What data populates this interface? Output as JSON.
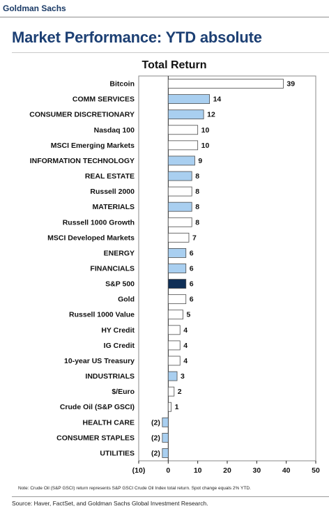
{
  "header": {
    "brand": "Goldman Sachs",
    "page_title": "Market Performance: YTD absolute"
  },
  "chart_data": {
    "type": "bar",
    "orientation": "horizontal",
    "title": "Total Return",
    "xlabel": "",
    "ylabel": "",
    "xlim": [
      -10,
      50
    ],
    "xticks": [
      -10,
      0,
      10,
      20,
      30,
      40,
      50
    ],
    "xtick_labels": [
      "(10)",
      "0",
      "10",
      "20",
      "30",
      "40",
      "50"
    ],
    "grid": false,
    "categories": [
      "Bitcoin",
      "COMM SERVICES",
      "CONSUMER DISCRETIONARY",
      "Nasdaq 100",
      "MSCI Emerging Markets",
      "INFORMATION TECHNOLOGY",
      "REAL ESTATE",
      "Russell 2000",
      "MATERIALS",
      "Russell 1000 Growth",
      "MSCI Developed Markets",
      "ENERGY",
      "FINANCIALS",
      "S&P 500",
      "Gold",
      "Russell 1000 Value",
      "HY Credit",
      "IG Credit",
      "10-year US Treasury",
      "INDUSTRIALS",
      "$/Euro",
      "Crude Oil (S&P GSCI)",
      "HEALTH CARE",
      "CONSUMER STAPLES",
      "UTILITIES"
    ],
    "values": [
      39,
      14,
      12,
      10,
      10,
      9,
      8,
      8,
      8,
      8,
      7,
      6,
      6,
      6,
      6,
      5,
      4,
      4,
      4,
      3,
      2,
      1,
      -2,
      -2,
      -2
    ],
    "value_labels": [
      "39",
      "14",
      "12",
      "10",
      "10",
      "9",
      "8",
      "8",
      "8",
      "8",
      "7",
      "6",
      "6",
      "6",
      "6",
      "5",
      "4",
      "4",
      "4",
      "3",
      "2",
      "1",
      "(2)",
      "(2)",
      "(2)"
    ],
    "bar_fill": [
      "white",
      "sector",
      "sector",
      "white",
      "white",
      "sector",
      "sector",
      "white",
      "sector",
      "white",
      "white",
      "sector",
      "sector",
      "highlight",
      "white",
      "white",
      "white",
      "white",
      "white",
      "sector",
      "white",
      "white",
      "sector",
      "sector",
      "sector"
    ],
    "colors": {
      "white": "#ffffff",
      "sector": "#a9cff0",
      "highlight": "#0f2f57",
      "bar_border": "#4a4a4a",
      "plot_border": "#888888",
      "axis": "#222222"
    }
  },
  "footer": {
    "note": "Note: Crude Oil (S&P GSCI) return represents S&P GSCI Crude Oil Index total return. Spot change equals 2% YTD.",
    "source": "Source: Haver, FactSet, and Goldman Sachs Global Investment Research."
  }
}
